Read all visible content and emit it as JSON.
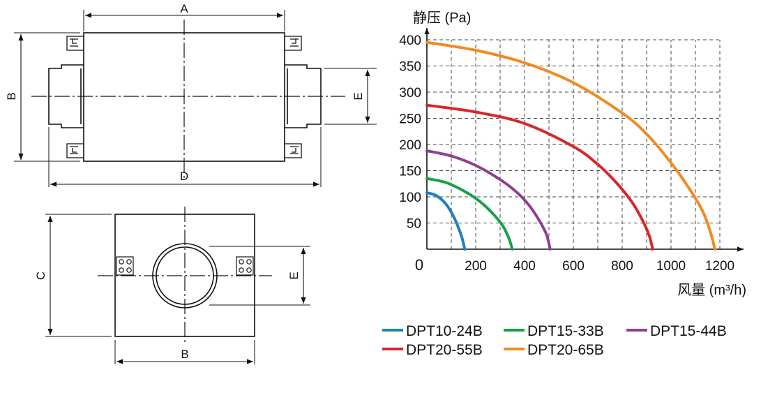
{
  "drawing": {
    "side_view_labels": {
      "a": "A",
      "b": "B",
      "d": "D",
      "e": "E"
    },
    "end_view_labels": {
      "c": "C",
      "b": "B",
      "e": "E"
    }
  },
  "chart_data": {
    "type": "line",
    "title": "",
    "xlabel": "风量 (m³/h)",
    "ylabel": "静压 (Pa)",
    "xlim": [
      0,
      1200
    ],
    "ylim": [
      0,
      400
    ],
    "x_ticks": [
      "0",
      "200",
      "400",
      "600",
      "800",
      "1000",
      "1200"
    ],
    "y_ticks": [
      "50",
      "100",
      "150",
      "200",
      "250",
      "300",
      "350",
      "400"
    ],
    "grid": true,
    "legend_position": "below",
    "series": [
      {
        "name": "DPT10-24B",
        "color": "#1f7fc0",
        "x": [
          0,
          40,
          80,
          110,
          130,
          145,
          155
        ],
        "y": [
          108,
          102,
          85,
          62,
          40,
          20,
          0
        ]
      },
      {
        "name": "DPT15-33B",
        "color": "#19a04a",
        "x": [
          0,
          80,
          160,
          220,
          270,
          310,
          335,
          350
        ],
        "y": [
          135,
          127,
          109,
          90,
          68,
          45,
          22,
          0
        ]
      },
      {
        "name": "DPT15-44B",
        "color": "#8e3f8f",
        "x": [
          0,
          100,
          200,
          300,
          370,
          420,
          460,
          490,
          505
        ],
        "y": [
          188,
          178,
          160,
          133,
          108,
          83,
          55,
          28,
          0
        ]
      },
      {
        "name": "DPT20-55B",
        "color": "#d9262b",
        "x": [
          0,
          200,
          400,
          600,
          700,
          780,
          840,
          880,
          910,
          925
        ],
        "y": [
          275,
          262,
          240,
          196,
          162,
          125,
          90,
          58,
          27,
          0
        ]
      },
      {
        "name": "DPT20-65B",
        "color": "#f28a22",
        "x": [
          0,
          200,
          400,
          600,
          800,
          900,
          1000,
          1080,
          1130,
          1160,
          1180
        ],
        "y": [
          395,
          380,
          356,
          318,
          260,
          220,
          165,
          112,
          72,
          35,
          0
        ]
      }
    ]
  }
}
